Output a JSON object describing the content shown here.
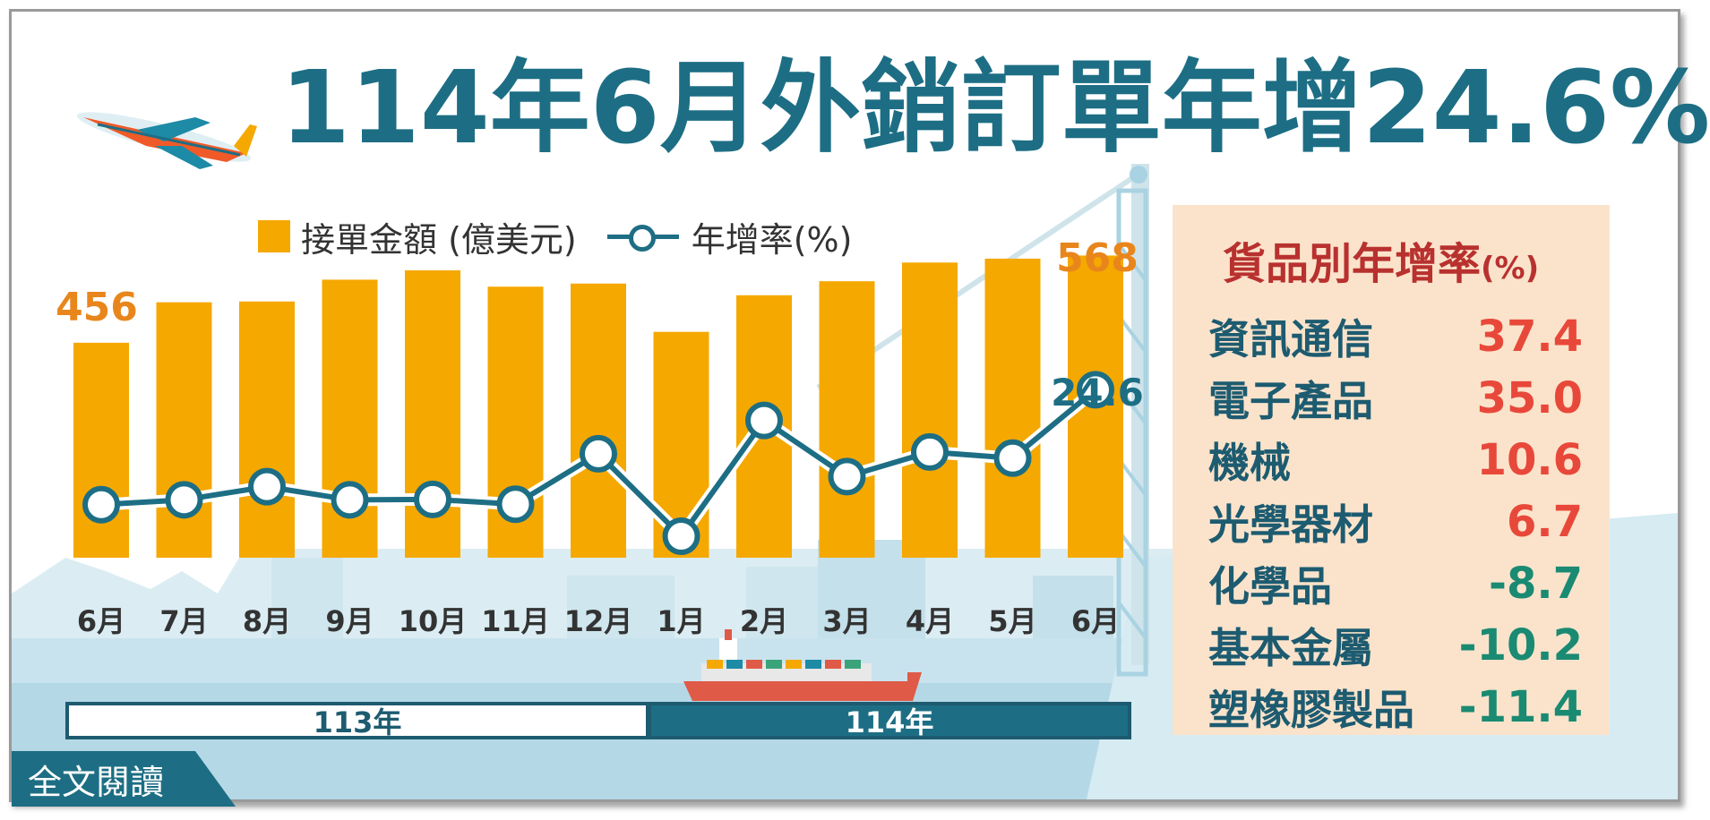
{
  "title": {
    "main": "114年6月外銷訂單年增24.6%"
  },
  "legend": {
    "bars": "接單金額 (億美元)",
    "line": "年增率(%)"
  },
  "colors": {
    "bar": "#f5a800",
    "line": "#1d6e84",
    "title": "#1d6e84",
    "positive": "#e8483a",
    "negative": "#1a8a72",
    "panel_bg": "#fbe3cb"
  },
  "chart_data": {
    "type": "bar",
    "categories": [
      "6月",
      "7月",
      "8月",
      "9月",
      "10月",
      "11月",
      "12月",
      "1月",
      "2月",
      "3月",
      "4月",
      "5月",
      "6月"
    ],
    "series": [
      {
        "name": "接單金額 (億美元)",
        "type": "bar",
        "values": [
          456,
          508,
          509,
          537,
          549,
          528,
          532,
          470,
          517,
          535,
          559,
          564,
          568
        ]
      },
      {
        "name": "年增率(%)",
        "type": "line",
        "values": [
          -1.6,
          -0.5,
          2.5,
          -0.5,
          -0.4,
          -1.5,
          10.0,
          -8.8,
          17.6,
          4.8,
          10.4,
          9.0,
          24.6
        ]
      }
    ],
    "data_labels": {
      "first_bar": "456",
      "last_bar": "568",
      "last_line": "24.6"
    },
    "period_groups": [
      {
        "label": "113年",
        "span": 7
      },
      {
        "label": "114年",
        "span": 6
      }
    ]
  },
  "panel": {
    "title": "貨品別年增率",
    "unit": "(%)",
    "items": [
      {
        "category": "資訊通信",
        "value": "37.4"
      },
      {
        "category": "電子產品",
        "value": "35.0"
      },
      {
        "category": "機械",
        "value": "10.6"
      },
      {
        "category": "光學器材",
        "value": "6.7"
      },
      {
        "category": "化學品",
        "value": "-8.7"
      },
      {
        "category": "基本金屬",
        "value": "-10.2"
      },
      {
        "category": "塑橡膠製品",
        "value": "-11.4"
      }
    ]
  },
  "read_more": "全文閱讀"
}
